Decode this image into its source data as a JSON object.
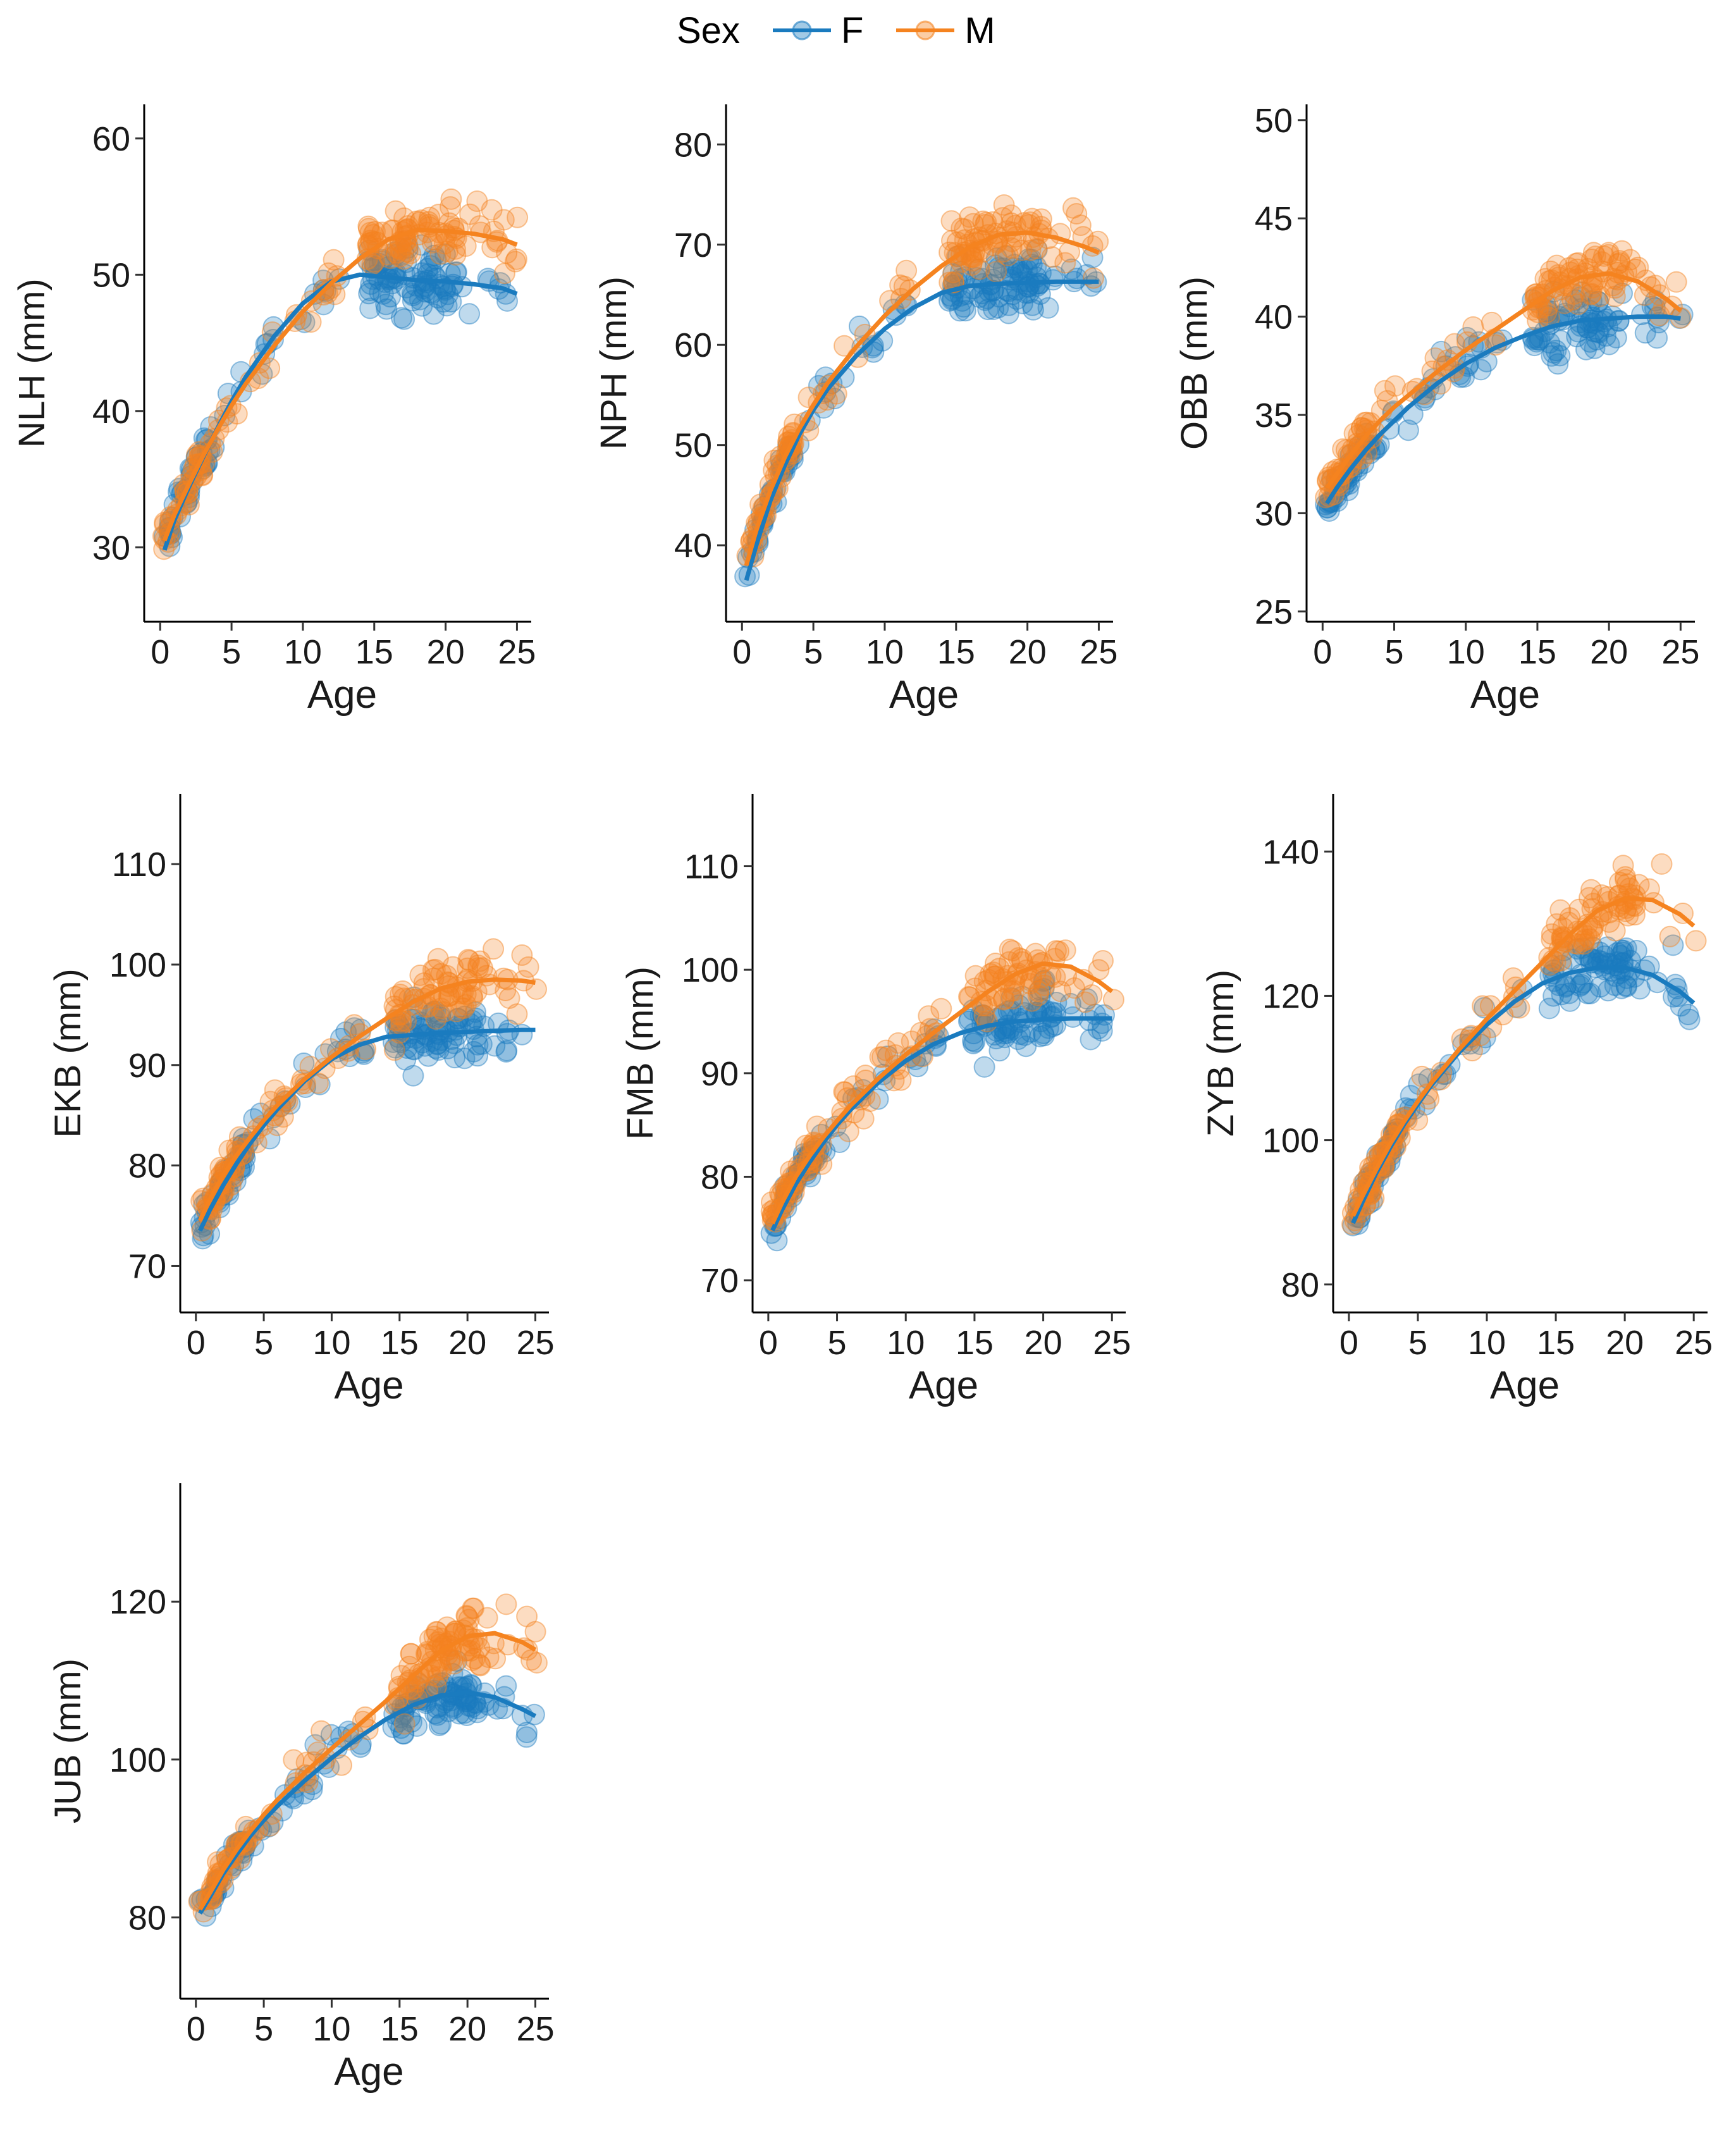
{
  "legend": {
    "title": "Sex",
    "items": [
      {
        "label": "F",
        "color": "#1a7bbf"
      },
      {
        "label": "M",
        "color": "#f5831f"
      }
    ]
  },
  "chart_data": [
    {
      "type": "scatter",
      "measure": "NLH",
      "ylabel": "NLH (mm)",
      "xlabel": "Age",
      "xlim": [
        -0.5,
        26
      ],
      "ylim": [
        25,
        62.5
      ],
      "xticks": [
        0,
        5,
        10,
        15,
        20,
        25
      ],
      "yticks": [
        30,
        40,
        50,
        60
      ],
      "series": [
        {
          "name": "F",
          "fit": {
            "x": [
              0.3,
              1,
              2,
              3,
              4,
              5,
              6,
              8,
              10,
              12,
              14,
              16,
              18,
              20,
              22,
              24,
              25
            ],
            "y": [
              29.8,
              32,
              34.4,
              36.6,
              38.7,
              40.7,
              42.5,
              45.5,
              47.9,
              49.5,
              50,
              49.8,
              49.6,
              49.5,
              49.3,
              49,
              48.6
            ]
          }
        },
        {
          "name": "M",
          "fit": {
            "x": [
              0.3,
              1,
              2,
              3,
              4,
              5,
              6,
              8,
              10,
              12,
              14,
              16,
              18,
              20,
              22,
              24,
              25
            ],
            "y": [
              30.5,
              32.4,
              34.6,
              36.7,
              38.6,
              40.4,
              42,
              44.8,
              47.3,
              49.4,
              51.2,
              52.6,
              53.3,
              53.2,
              53,
              52.6,
              52.2
            ]
          }
        }
      ]
    },
    {
      "type": "scatter",
      "measure": "NPH",
      "ylabel": "NPH (mm)",
      "xlabel": "Age",
      "xlim": [
        -0.5,
        26
      ],
      "ylim": [
        33,
        84
      ],
      "xticks": [
        0,
        5,
        10,
        15,
        20,
        25
      ],
      "yticks": [
        40,
        50,
        60,
        70,
        80
      ],
      "series": [
        {
          "name": "F",
          "fit": {
            "x": [
              0.3,
              1,
              2,
              3,
              4,
              5,
              6,
              8,
              10,
              12,
              14,
              16,
              18,
              20,
              22,
              24,
              25
            ],
            "y": [
              36.5,
              40,
              44.5,
              48,
              51,
              53.5,
              55.6,
              58.9,
              61.6,
              63.7,
              65.2,
              65.9,
              66.1,
              66.2,
              66.3,
              66.3,
              66.3
            ]
          }
        },
        {
          "name": "M",
          "fit": {
            "x": [
              0.3,
              1,
              2,
              3,
              4,
              5,
              6,
              8,
              10,
              12,
              14,
              16,
              18,
              20,
              22,
              24,
              25
            ],
            "y": [
              38,
              41.5,
              45.5,
              48.8,
              51.6,
              54,
              56.2,
              59.8,
              62.9,
              65.6,
              67.9,
              69.8,
              71,
              71.2,
              70.7,
              69.8,
              69.2
            ]
          }
        }
      ]
    },
    {
      "type": "scatter",
      "measure": "OBB",
      "ylabel": "OBB (mm)",
      "xlabel": "Age",
      "xlim": [
        -0.5,
        26
      ],
      "ylim": [
        24.8,
        50.8
      ],
      "xticks": [
        0,
        5,
        10,
        15,
        20,
        25
      ],
      "yticks": [
        25,
        30,
        35,
        40,
        45,
        50
      ],
      "series": [
        {
          "name": "F",
          "fit": {
            "x": [
              0.3,
              1,
              2,
              3,
              4,
              5,
              6,
              8,
              10,
              12,
              14,
              16,
              18,
              20,
              22,
              24,
              25
            ],
            "y": [
              30.5,
              31.3,
              32.3,
              33.2,
              34,
              34.7,
              35.4,
              36.6,
              37.6,
              38.4,
              39,
              39.5,
              39.8,
              39.9,
              40,
              40,
              39.9
            ]
          }
        },
        {
          "name": "M",
          "fit": {
            "x": [
              0.3,
              1,
              2,
              3,
              4,
              5,
              6,
              8,
              10,
              12,
              14,
              16,
              18,
              20,
              22,
              24,
              25
            ],
            "y": [
              31.3,
              32,
              33,
              33.9,
              34.7,
              35.4,
              36,
              37.2,
              38.3,
              39.3,
              40.3,
              41.3,
              42,
              42.2,
              41.8,
              40.9,
              40.3
            ]
          }
        }
      ]
    },
    {
      "type": "scatter",
      "measure": "EKB",
      "ylabel": "EKB (mm)",
      "xlabel": "Age",
      "xlim": [
        -0.5,
        26
      ],
      "ylim": [
        66,
        117
      ],
      "xticks": [
        0,
        5,
        10,
        15,
        20,
        25
      ],
      "yticks": [
        70,
        80,
        90,
        100,
        110
      ],
      "series": [
        {
          "name": "F",
          "fit": {
            "x": [
              0.3,
              1,
              2,
              3,
              4,
              5,
              6,
              8,
              10,
              12,
              14,
              16,
              18,
              20,
              22,
              24,
              25
            ],
            "y": [
              73.5,
              75.5,
              78,
              80.2,
              82.2,
              84,
              85.6,
              88.4,
              90.6,
              92,
              92.8,
              93,
              93.2,
              93.3,
              93.4,
              93.5,
              93.5
            ]
          }
        },
        {
          "name": "M",
          "fit": {
            "x": [
              0.3,
              1,
              2,
              3,
              4,
              5,
              6,
              8,
              10,
              12,
              14,
              16,
              18,
              20,
              22,
              24,
              25
            ],
            "y": [
              74.5,
              76.5,
              79,
              81,
              82.8,
              84.5,
              86,
              88.6,
              90.8,
              92.8,
              94.6,
              96.3,
              97.6,
              98.3,
              98.5,
              98.4,
              98.2
            ]
          }
        }
      ]
    },
    {
      "type": "scatter",
      "measure": "FMB",
      "ylabel": "FMB (mm)",
      "xlabel": "Age",
      "xlim": [
        -0.5,
        26
      ],
      "ylim": [
        67.5,
        117
      ],
      "xticks": [
        0,
        5,
        10,
        15,
        20,
        25
      ],
      "yticks": [
        70,
        80,
        90,
        100,
        110
      ],
      "series": [
        {
          "name": "F",
          "fit": {
            "x": [
              0.3,
              1,
              2,
              3,
              4,
              5,
              6,
              8,
              10,
              12,
              14,
              16,
              18,
              20,
              22,
              24,
              25
            ],
            "y": [
              74.8,
              76.8,
              79.3,
              81.4,
              83.3,
              85,
              86.5,
              89.1,
              91.2,
              92.8,
              93.9,
              94.6,
              95,
              95.2,
              95.3,
              95.3,
              95.3
            ]
          }
        },
        {
          "name": "M",
          "fit": {
            "x": [
              0.3,
              1,
              2,
              3,
              4,
              5,
              6,
              8,
              10,
              12,
              14,
              16,
              18,
              20,
              22,
              24,
              25
            ],
            "y": [
              75.5,
              77.5,
              80,
              82,
              83.8,
              85.4,
              86.9,
              89.5,
              91.8,
              93.9,
              95.9,
              97.9,
              99.6,
              100.6,
              100.3,
              98.9,
              97.9
            ]
          }
        }
      ]
    },
    {
      "type": "scatter",
      "measure": "ZYB",
      "ylabel": "ZYB (mm)",
      "xlabel": "Age",
      "xlim": [
        -0.5,
        26
      ],
      "ylim": [
        77,
        148
      ],
      "xticks": [
        0,
        5,
        10,
        15,
        20,
        25
      ],
      "yticks": [
        80,
        100,
        120,
        140
      ],
      "series": [
        {
          "name": "F",
          "fit": {
            "x": [
              0.3,
              1,
              2,
              3,
              4,
              5,
              6,
              8,
              10,
              12,
              14,
              16,
              18,
              20,
              22,
              24,
              25
            ],
            "y": [
              88.5,
              91.5,
              95.5,
              99,
              102.2,
              105,
              107.7,
              112.2,
              116,
              119.2,
              121.7,
              123.2,
              123.9,
              123.9,
              122.9,
              120.6,
              119
            ]
          }
        },
        {
          "name": "M",
          "fit": {
            "x": [
              0.3,
              1,
              2,
              3,
              4,
              5,
              6,
              8,
              10,
              12,
              14,
              16,
              18,
              20,
              22,
              24,
              25
            ],
            "y": [
              89.5,
              92.3,
              96,
              99.5,
              102.6,
              105.4,
              108,
              112.6,
              116.8,
              120.7,
              124.6,
              128.5,
              131.8,
              133.5,
              133.3,
              131.3,
              129.7
            ]
          }
        }
      ]
    },
    {
      "type": "scatter",
      "measure": "JUB",
      "ylabel": "JUB (mm)",
      "xlabel": "Age",
      "xlim": [
        -0.5,
        26
      ],
      "ylim": [
        70.5,
        135
      ],
      "xticks": [
        0,
        5,
        10,
        15,
        20,
        25
      ],
      "yticks": [
        80,
        100,
        120
      ],
      "series": [
        {
          "name": "F",
          "fit": {
            "x": [
              0.3,
              1,
              2,
              3,
              4,
              5,
              6,
              8,
              10,
              12,
              14,
              16,
              18,
              20,
              22,
              24,
              25
            ],
            "y": [
              80.5,
              82.5,
              85.5,
              88,
              90.3,
              92.3,
              94.1,
              97.3,
              100.2,
              102.8,
              105.1,
              106.9,
              108.1,
              108.5,
              107.9,
              106.4,
              105.5
            ]
          }
        },
        {
          "name": "M",
          "fit": {
            "x": [
              0.3,
              1,
              2,
              3,
              4,
              5,
              6,
              8,
              10,
              12,
              14,
              16,
              18,
              20,
              22,
              24,
              25
            ],
            "y": [
              81,
              83,
              86,
              88.6,
              90.9,
              93,
              94.9,
              98.3,
              101.4,
              104.4,
              107.4,
              110.6,
              113.7,
              115.6,
              116,
              114.9,
              113.9
            ]
          }
        }
      ]
    }
  ]
}
